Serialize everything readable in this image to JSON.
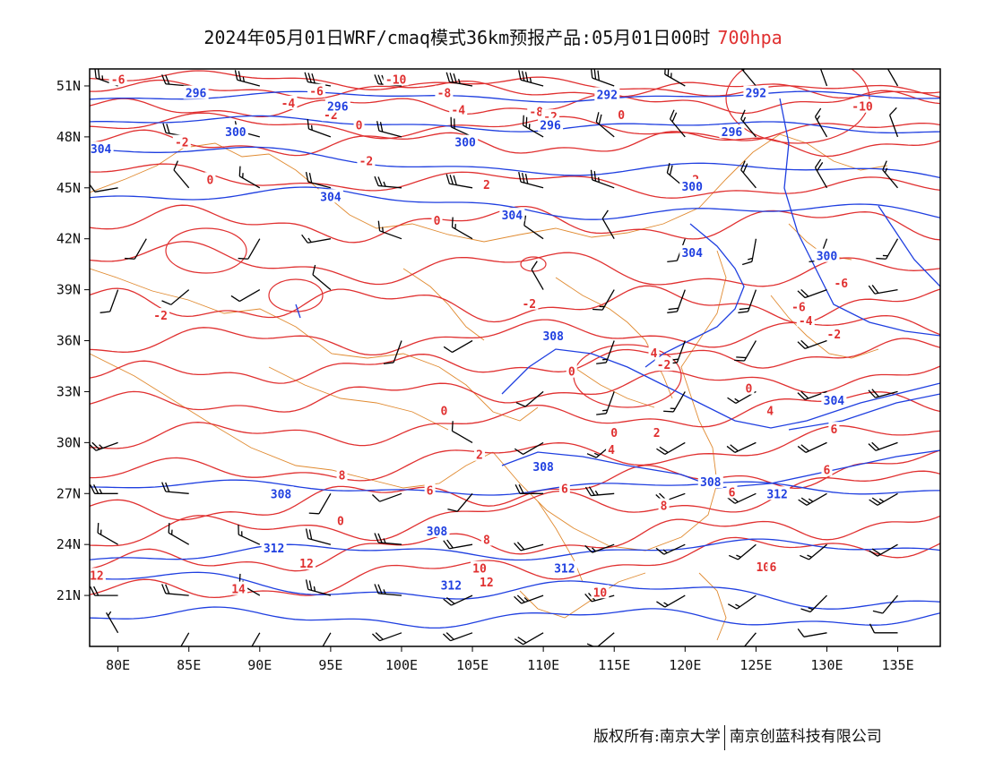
{
  "title": {
    "main": "2024年05月01日WRF/cmaq模式36km预报产品:05月01日00时",
    "level": "700hpa"
  },
  "map": {
    "lat_labels": [
      "51N",
      "48N",
      "45N",
      "42N",
      "39N",
      "36N",
      "33N",
      "30N",
      "27N",
      "24N",
      "21N"
    ],
    "lat_values": [
      51,
      48,
      45,
      42,
      39,
      36,
      33,
      30,
      27,
      24,
      21
    ],
    "lon_labels": [
      "80E",
      "85E",
      "90E",
      "95E",
      "100E",
      "105E",
      "110E",
      "115E",
      "120E",
      "125E",
      "130E",
      "135E"
    ],
    "lon_values": [
      80,
      85,
      90,
      95,
      100,
      105,
      110,
      115,
      120,
      125,
      130,
      135
    ],
    "lon_range": [
      78,
      138
    ],
    "lat_range": [
      18,
      52
    ],
    "colors": {
      "geopotential": "#1f3fe0",
      "temperature": "#e03030",
      "border": "#e08a30",
      "wind_barb": "#000000"
    },
    "geopotential_labels": [
      {
        "text": "296",
        "lon": 85.5,
        "lat": 50.6
      },
      {
        "text": "296",
        "lon": 95.5,
        "lat": 49.8
      },
      {
        "text": "292",
        "lon": 114.5,
        "lat": 50.5
      },
      {
        "text": "292",
        "lon": 125.0,
        "lat": 50.6
      },
      {
        "text": "296",
        "lon": 110.5,
        "lat": 48.7
      },
      {
        "text": "296",
        "lon": 123.3,
        "lat": 48.3
      },
      {
        "text": "300",
        "lon": 88.3,
        "lat": 48.3
      },
      {
        "text": "300",
        "lon": 104.5,
        "lat": 47.7
      },
      {
        "text": "304",
        "lon": 78.8,
        "lat": 47.3
      },
      {
        "text": "304",
        "lon": 95.0,
        "lat": 44.5
      },
      {
        "text": "304",
        "lon": 107.8,
        "lat": 43.4
      },
      {
        "text": "300",
        "lon": 120.5,
        "lat": 45.1
      },
      {
        "text": "304",
        "lon": 120.5,
        "lat": 41.2
      },
      {
        "text": "300",
        "lon": 130.0,
        "lat": 41.0
      },
      {
        "text": "308",
        "lon": 110.7,
        "lat": 36.3
      },
      {
        "text": "308",
        "lon": 110.0,
        "lat": 28.6
      },
      {
        "text": "304",
        "lon": 130.5,
        "lat": 32.5
      },
      {
        "text": "308",
        "lon": 121.8,
        "lat": 27.7
      },
      {
        "text": "312",
        "lon": 126.5,
        "lat": 27.0
      },
      {
        "text": "308",
        "lon": 91.5,
        "lat": 27.0
      },
      {
        "text": "308",
        "lon": 102.5,
        "lat": 24.8
      },
      {
        "text": "312",
        "lon": 91.0,
        "lat": 23.8
      },
      {
        "text": "312",
        "lon": 111.5,
        "lat": 22.6
      },
      {
        "text": "312",
        "lon": 103.5,
        "lat": 21.6
      }
    ],
    "temperature_labels": [
      {
        "text": "-6",
        "lon": 80.0,
        "lat": 51.4
      },
      {
        "text": "-10",
        "lon": 99.6,
        "lat": 51.4
      },
      {
        "text": "-6",
        "lon": 94.0,
        "lat": 50.7
      },
      {
        "text": "-8",
        "lon": 109.5,
        "lat": 49.5
      },
      {
        "text": "-8",
        "lon": 103.0,
        "lat": 50.6
      },
      {
        "text": "-4",
        "lon": 104.0,
        "lat": 49.6
      },
      {
        "text": "-2",
        "lon": 95.0,
        "lat": 49.3
      },
      {
        "text": "-4",
        "lon": 92.0,
        "lat": 50.0
      },
      {
        "text": "-2",
        "lon": 110.5,
        "lat": 49.2
      },
      {
        "text": "0",
        "lon": 97.0,
        "lat": 48.7
      },
      {
        "text": "0",
        "lon": 115.5,
        "lat": 49.3
      },
      {
        "text": "-10",
        "lon": 132.5,
        "lat": 49.8
      },
      {
        "text": "-2",
        "lon": 84.5,
        "lat": 47.7
      },
      {
        "text": "-2",
        "lon": 97.5,
        "lat": 46.6
      },
      {
        "text": "2",
        "lon": 106.0,
        "lat": 45.2
      },
      {
        "text": "0",
        "lon": 86.5,
        "lat": 45.5
      },
      {
        "text": "0",
        "lon": 102.5,
        "lat": 43.1
      },
      {
        "text": "-2",
        "lon": 120.5,
        "lat": 45.5
      },
      {
        "text": "-6",
        "lon": 131.0,
        "lat": 39.4
      },
      {
        "text": "-6",
        "lon": 128.0,
        "lat": 38.0
      },
      {
        "text": "-4",
        "lon": 128.5,
        "lat": 37.2
      },
      {
        "text": "-2",
        "lon": 130.5,
        "lat": 36.4
      },
      {
        "text": "-2",
        "lon": 83.0,
        "lat": 37.5
      },
      {
        "text": "-2",
        "lon": 109.0,
        "lat": 38.2
      },
      {
        "text": "4",
        "lon": 117.8,
        "lat": 35.3
      },
      {
        "text": "-2",
        "lon": 118.5,
        "lat": 34.6
      },
      {
        "text": "0",
        "lon": 112.0,
        "lat": 34.2
      },
      {
        "text": "0",
        "lon": 103.0,
        "lat": 31.9
      },
      {
        "text": "0",
        "lon": 124.5,
        "lat": 33.2
      },
      {
        "text": "4",
        "lon": 126.0,
        "lat": 31.9
      },
      {
        "text": "6",
        "lon": 130.5,
        "lat": 30.8
      },
      {
        "text": "2",
        "lon": 118.0,
        "lat": 30.6
      },
      {
        "text": "0",
        "lon": 115.0,
        "lat": 30.6
      },
      {
        "text": "2",
        "lon": 105.5,
        "lat": 29.3
      },
      {
        "text": "4",
        "lon": 114.8,
        "lat": 29.6
      },
      {
        "text": "6",
        "lon": 130.0,
        "lat": 28.4
      },
      {
        "text": "6",
        "lon": 123.3,
        "lat": 27.1
      },
      {
        "text": "8",
        "lon": 118.5,
        "lat": 26.3
      },
      {
        "text": "6",
        "lon": 111.5,
        "lat": 27.3
      },
      {
        "text": "6",
        "lon": 102.0,
        "lat": 27.2
      },
      {
        "text": "8",
        "lon": 95.8,
        "lat": 28.1
      },
      {
        "text": "0",
        "lon": 95.7,
        "lat": 25.4
      },
      {
        "text": "8",
        "lon": 106.0,
        "lat": 24.3
      },
      {
        "text": "12",
        "lon": 93.3,
        "lat": 22.9
      },
      {
        "text": "12",
        "lon": 78.5,
        "lat": 22.2
      },
      {
        "text": "10",
        "lon": 105.5,
        "lat": 22.6
      },
      {
        "text": "12",
        "lon": 106.0,
        "lat": 21.8
      },
      {
        "text": "14",
        "lon": 88.5,
        "lat": 21.4
      },
      {
        "text": "10",
        "lon": 114.0,
        "lat": 21.2
      },
      {
        "text": "10",
        "lon": 125.5,
        "lat": 22.7
      },
      {
        "text": "6",
        "lon": 126.2,
        "lat": 22.7
      }
    ],
    "wind_barbs": [
      {
        "lon": 80,
        "lat": 51,
        "dir": 290,
        "spd": 25
      },
      {
        "lon": 85,
        "lat": 51,
        "dir": 275,
        "spd": 20
      },
      {
        "lon": 90,
        "lat": 51,
        "dir": 285,
        "spd": 25
      },
      {
        "lon": 95,
        "lat": 51,
        "dir": 280,
        "spd": 30
      },
      {
        "lon": 100,
        "lat": 51,
        "dir": 275,
        "spd": 30
      },
      {
        "lon": 105,
        "lat": 51,
        "dir": 280,
        "spd": 35
      },
      {
        "lon": 110,
        "lat": 51,
        "dir": 285,
        "spd": 35
      },
      {
        "lon": 115,
        "lat": 51,
        "dir": 290,
        "spd": 30
      },
      {
        "lon": 120,
        "lat": 51,
        "dir": 300,
        "spd": 25
      },
      {
        "lon": 125,
        "lat": 51,
        "dir": 320,
        "spd": 20
      },
      {
        "lon": 130,
        "lat": 51,
        "dir": 340,
        "spd": 20
      },
      {
        "lon": 135,
        "lat": 51,
        "dir": 330,
        "spd": 15
      },
      {
        "lon": 85,
        "lat": 48,
        "dir": 280,
        "spd": 20
      },
      {
        "lon": 90,
        "lat": 48,
        "dir": 285,
        "spd": 15
      },
      {
        "lon": 95,
        "lat": 48,
        "dir": 290,
        "spd": 15
      },
      {
        "lon": 100,
        "lat": 48,
        "dir": 285,
        "spd": 20
      },
      {
        "lon": 105,
        "lat": 48,
        "dir": 295,
        "spd": 20
      },
      {
        "lon": 110,
        "lat": 48,
        "dir": 300,
        "spd": 25
      },
      {
        "lon": 115,
        "lat": 48,
        "dir": 310,
        "spd": 20
      },
      {
        "lon": 120,
        "lat": 48,
        "dir": 320,
        "spd": 20
      },
      {
        "lon": 125,
        "lat": 48,
        "dir": 320,
        "spd": 15
      },
      {
        "lon": 130,
        "lat": 48,
        "dir": 330,
        "spd": 15
      },
      {
        "lon": 135,
        "lat": 48,
        "dir": 340,
        "spd": 10
      },
      {
        "lon": 80,
        "lat": 45,
        "dir": 260,
        "spd": 10
      },
      {
        "lon": 85,
        "lat": 45,
        "dir": 320,
        "spd": 10
      },
      {
        "lon": 90,
        "lat": 45,
        "dir": 300,
        "spd": 15
      },
      {
        "lon": 95,
        "lat": 45,
        "dir": 285,
        "spd": 20
      },
      {
        "lon": 100,
        "lat": 45,
        "dir": 275,
        "spd": 25
      },
      {
        "lon": 105,
        "lat": 45,
        "dir": 280,
        "spd": 30
      },
      {
        "lon": 110,
        "lat": 45,
        "dir": 285,
        "spd": 30
      },
      {
        "lon": 115,
        "lat": 45,
        "dir": 290,
        "spd": 25
      },
      {
        "lon": 120,
        "lat": 45,
        "dir": 310,
        "spd": 20
      },
      {
        "lon": 125,
        "lat": 45,
        "dir": 320,
        "spd": 20
      },
      {
        "lon": 130,
        "lat": 45,
        "dir": 330,
        "spd": 20
      },
      {
        "lon": 135,
        "lat": 45,
        "dir": 320,
        "spd": 15
      },
      {
        "lon": 82,
        "lat": 42,
        "dir": 210,
        "spd": 10
      },
      {
        "lon": 90,
        "lat": 42,
        "dir": 210,
        "spd": 10
      },
      {
        "lon": 95,
        "lat": 42,
        "dir": 260,
        "spd": 15
      },
      {
        "lon": 100,
        "lat": 42,
        "dir": 290,
        "spd": 15
      },
      {
        "lon": 105,
        "lat": 42,
        "dir": 300,
        "spd": 15
      },
      {
        "lon": 110,
        "lat": 42,
        "dir": 305,
        "spd": 10
      },
      {
        "lon": 115,
        "lat": 42,
        "dir": 330,
        "spd": 10
      },
      {
        "lon": 120,
        "lat": 42,
        "dir": 200,
        "spd": 10
      },
      {
        "lon": 125,
        "lat": 42,
        "dir": 190,
        "spd": 15
      },
      {
        "lon": 130,
        "lat": 42,
        "dir": 200,
        "spd": 15
      },
      {
        "lon": 135,
        "lat": 42,
        "dir": 210,
        "spd": 15
      },
      {
        "lon": 80,
        "lat": 39,
        "dir": 200,
        "spd": 10
      },
      {
        "lon": 85,
        "lat": 39,
        "dir": 230,
        "spd": 10
      },
      {
        "lon": 90,
        "lat": 39,
        "dir": 240,
        "spd": 10
      },
      {
        "lon": 95,
        "lat": 39,
        "dir": 310,
        "spd": 10
      },
      {
        "lon": 110,
        "lat": 39,
        "dir": 330,
        "spd": 10
      },
      {
        "lon": 115,
        "lat": 39,
        "dir": 210,
        "spd": 15
      },
      {
        "lon": 120,
        "lat": 39,
        "dir": 200,
        "spd": 20
      },
      {
        "lon": 125,
        "lat": 39,
        "dir": 200,
        "spd": 20
      },
      {
        "lon": 130,
        "lat": 39,
        "dir": 250,
        "spd": 20
      },
      {
        "lon": 135,
        "lat": 39,
        "dir": 260,
        "spd": 20
      },
      {
        "lon": 100,
        "lat": 36,
        "dir": 200,
        "spd": 10
      },
      {
        "lon": 105,
        "lat": 36,
        "dir": 240,
        "spd": 10
      },
      {
        "lon": 115,
        "lat": 36,
        "dir": 200,
        "spd": 15
      },
      {
        "lon": 120,
        "lat": 36,
        "dir": 200,
        "spd": 20
      },
      {
        "lon": 125,
        "lat": 36,
        "dir": 210,
        "spd": 20
      },
      {
        "lon": 130,
        "lat": 36,
        "dir": 250,
        "spd": 20
      },
      {
        "lon": 110,
        "lat": 33,
        "dir": 230,
        "spd": 10
      },
      {
        "lon": 115,
        "lat": 33,
        "dir": 200,
        "spd": 15
      },
      {
        "lon": 120,
        "lat": 33,
        "dir": 210,
        "spd": 15
      },
      {
        "lon": 125,
        "lat": 33,
        "dir": 240,
        "spd": 15
      },
      {
        "lon": 130,
        "lat": 33,
        "dir": 250,
        "spd": 20
      },
      {
        "lon": 135,
        "lat": 33,
        "dir": 255,
        "spd": 20
      },
      {
        "lon": 80,
        "lat": 30,
        "dir": 250,
        "spd": 25
      },
      {
        "lon": 105,
        "lat": 30,
        "dir": 300,
        "spd": 10
      },
      {
        "lon": 110,
        "lat": 30,
        "dir": 240,
        "spd": 10
      },
      {
        "lon": 115,
        "lat": 30,
        "dir": 230,
        "spd": 15
      },
      {
        "lon": 120,
        "lat": 30,
        "dir": 240,
        "spd": 20
      },
      {
        "lon": 125,
        "lat": 30,
        "dir": 245,
        "spd": 20
      },
      {
        "lon": 130,
        "lat": 30,
        "dir": 245,
        "spd": 20
      },
      {
        "lon": 135,
        "lat": 30,
        "dir": 250,
        "spd": 20
      },
      {
        "lon": 80,
        "lat": 27,
        "dir": 270,
        "spd": 25
      },
      {
        "lon": 85,
        "lat": 27,
        "dir": 275,
        "spd": 20
      },
      {
        "lon": 95,
        "lat": 27,
        "dir": 210,
        "spd": 10
      },
      {
        "lon": 100,
        "lat": 27,
        "dir": 250,
        "spd": 10
      },
      {
        "lon": 105,
        "lat": 27,
        "dir": 220,
        "spd": 10
      },
      {
        "lon": 110,
        "lat": 27,
        "dir": 270,
        "spd": 20
      },
      {
        "lon": 115,
        "lat": 27,
        "dir": 265,
        "spd": 25
      },
      {
        "lon": 120,
        "lat": 27,
        "dir": 250,
        "spd": 20
      },
      {
        "lon": 125,
        "lat": 27,
        "dir": 245,
        "spd": 20
      },
      {
        "lon": 130,
        "lat": 27,
        "dir": 240,
        "spd": 25
      },
      {
        "lon": 135,
        "lat": 27,
        "dir": 240,
        "spd": 25
      },
      {
        "lon": 80,
        "lat": 24,
        "dir": 300,
        "spd": 15
      },
      {
        "lon": 85,
        "lat": 24,
        "dir": 300,
        "spd": 15
      },
      {
        "lon": 90,
        "lat": 24,
        "dir": 295,
        "spd": 15
      },
      {
        "lon": 95,
        "lat": 24,
        "dir": 285,
        "spd": 20
      },
      {
        "lon": 100,
        "lat": 24,
        "dir": 275,
        "spd": 25
      },
      {
        "lon": 105,
        "lat": 24,
        "dir": 260,
        "spd": 20
      },
      {
        "lon": 110,
        "lat": 24,
        "dir": 255,
        "spd": 20
      },
      {
        "lon": 115,
        "lat": 24,
        "dir": 250,
        "spd": 15
      },
      {
        "lon": 120,
        "lat": 24,
        "dir": 245,
        "spd": 15
      },
      {
        "lon": 125,
        "lat": 24,
        "dir": 230,
        "spd": 15
      },
      {
        "lon": 130,
        "lat": 24,
        "dir": 230,
        "spd": 15
      },
      {
        "lon": 135,
        "lat": 24,
        "dir": 240,
        "spd": 20
      },
      {
        "lon": 80,
        "lat": 21,
        "dir": 270,
        "spd": 20
      },
      {
        "lon": 85,
        "lat": 21,
        "dir": 275,
        "spd": 20
      },
      {
        "lon": 90,
        "lat": 21,
        "dir": 300,
        "spd": 15
      },
      {
        "lon": 95,
        "lat": 21,
        "dir": 285,
        "spd": 25
      },
      {
        "lon": 100,
        "lat": 21,
        "dir": 275,
        "spd": 25
      },
      {
        "lon": 105,
        "lat": 21,
        "dir": 245,
        "spd": 20
      },
      {
        "lon": 110,
        "lat": 21,
        "dir": 250,
        "spd": 25
      },
      {
        "lon": 115,
        "lat": 21,
        "dir": 255,
        "spd": 20
      },
      {
        "lon": 120,
        "lat": 21,
        "dir": 240,
        "spd": 15
      },
      {
        "lon": 125,
        "lat": 21,
        "dir": 235,
        "spd": 15
      },
      {
        "lon": 130,
        "lat": 21,
        "dir": 225,
        "spd": 15
      },
      {
        "lon": 135,
        "lat": 21,
        "dir": 220,
        "spd": 10
      },
      {
        "lon": 80,
        "lat": 18.8,
        "dir": 330,
        "spd": 5
      },
      {
        "lon": 85,
        "lat": 18.8,
        "dir": 210,
        "spd": 5
      },
      {
        "lon": 90,
        "lat": 18.8,
        "dir": 210,
        "spd": 15
      },
      {
        "lon": 95,
        "lat": 18.8,
        "dir": 210,
        "spd": 15
      },
      {
        "lon": 100,
        "lat": 18.8,
        "dir": 250,
        "spd": 20
      },
      {
        "lon": 105,
        "lat": 18.8,
        "dir": 250,
        "spd": 20
      },
      {
        "lon": 110,
        "lat": 18.8,
        "dir": 240,
        "spd": 20
      },
      {
        "lon": 115,
        "lat": 18.8,
        "dir": 230,
        "spd": 10
      },
      {
        "lon": 125,
        "lat": 18.8,
        "dir": 220,
        "spd": 10
      },
      {
        "lon": 130,
        "lat": 18.8,
        "dir": 260,
        "spd": 10
      },
      {
        "lon": 135,
        "lat": 18.8,
        "dir": 270,
        "spd": 10
      }
    ]
  },
  "footer": {
    "copyright": "版权所有:南京大学",
    "company": "南京创蓝科技有限公司"
  }
}
